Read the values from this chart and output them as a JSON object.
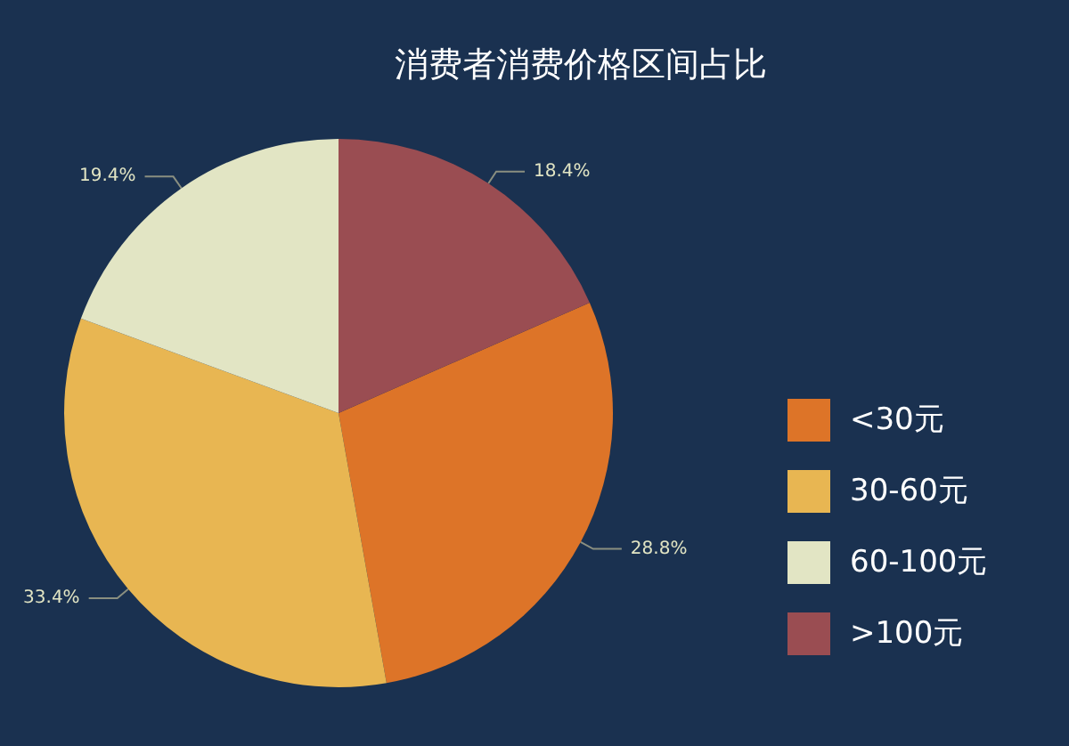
{
  "chart_data": {
    "type": "pie",
    "title": "消费者消费价格区间占比",
    "categories": [
      "<30元",
      "30-60元",
      "60-100元",
      ">100元"
    ],
    "values": [
      28.8,
      33.4,
      19.4,
      18.4
    ],
    "colors": [
      "#dd7428",
      "#e8b652",
      "#e2e5c4",
      "#9a4d52"
    ],
    "value_labels": [
      "28.8%",
      "33.4%",
      "19.4%",
      "18.4%"
    ],
    "legend": "right"
  }
}
